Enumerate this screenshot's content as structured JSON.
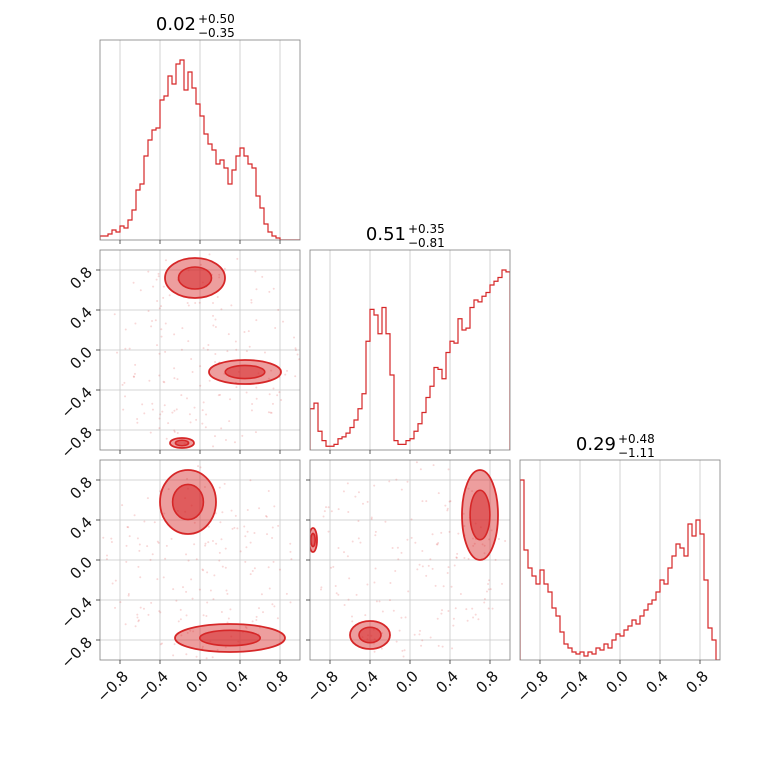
{
  "chart_data": {
    "type": "corner",
    "params": 3,
    "axis_range": [
      -1.0,
      1.0
    ],
    "ticks": [
      -0.8,
      -0.4,
      0.0,
      0.4,
      0.8
    ],
    "tick_labels": [
      "−0.8",
      "−0.4",
      "0.0",
      "0.4",
      "0.8"
    ],
    "grid": true,
    "color": "#d62728",
    "titles": [
      {
        "median": "0.02",
        "plus": "+0.50",
        "minus": "−0.35"
      },
      {
        "median": "0.51",
        "plus": "+0.35",
        "minus": "−0.81"
      },
      {
        "median": "0.29",
        "plus": "+0.48",
        "minus": "−1.11"
      }
    ],
    "histograms": [
      {
        "param": 0,
        "bin_edges_start": -1.0,
        "bin_width": 0.04,
        "counts": [
          0.02,
          0.02,
          0.03,
          0.05,
          0.04,
          0.07,
          0.06,
          0.1,
          0.15,
          0.25,
          0.28,
          0.42,
          0.5,
          0.55,
          0.56,
          0.7,
          0.72,
          0.82,
          0.78,
          0.88,
          0.9,
          0.75,
          0.84,
          0.76,
          0.68,
          0.62,
          0.53,
          0.48,
          0.45,
          0.38,
          0.4,
          0.36,
          0.28,
          0.35,
          0.42,
          0.46,
          0.42,
          0.38,
          0.36,
          0.22,
          0.16,
          0.08,
          0.04,
          0.02,
          0.01,
          0.0,
          0.0,
          0.0,
          0.0,
          0.0
        ]
      },
      {
        "param": 1,
        "bin_edges_start": -1.0,
        "bin_width": 0.04,
        "counts": [
          0.22,
          0.25,
          0.1,
          0.05,
          0.02,
          0.02,
          0.03,
          0.06,
          0.07,
          0.09,
          0.12,
          0.16,
          0.22,
          0.3,
          0.58,
          0.75,
          0.72,
          0.62,
          0.76,
          0.62,
          0.4,
          0.05,
          0.03,
          0.03,
          0.05,
          0.06,
          0.1,
          0.14,
          0.2,
          0.28,
          0.34,
          0.44,
          0.43,
          0.38,
          0.52,
          0.58,
          0.57,
          0.7,
          0.64,
          0.65,
          0.76,
          0.8,
          0.79,
          0.82,
          0.84,
          0.88,
          0.9,
          0.92,
          0.96,
          0.95
        ]
      },
      {
        "param": 2,
        "bin_edges_start": -1.0,
        "bin_width": 0.04,
        "counts": [
          0.9,
          0.55,
          0.46,
          0.42,
          0.38,
          0.45,
          0.38,
          0.34,
          0.26,
          0.22,
          0.14,
          0.08,
          0.06,
          0.04,
          0.03,
          0.04,
          0.02,
          0.04,
          0.03,
          0.06,
          0.05,
          0.08,
          0.06,
          0.1,
          0.13,
          0.12,
          0.15,
          0.17,
          0.2,
          0.18,
          0.22,
          0.25,
          0.28,
          0.3,
          0.34,
          0.4,
          0.38,
          0.46,
          0.52,
          0.58,
          0.56,
          0.52,
          0.68,
          0.62,
          0.7,
          0.63,
          0.4,
          0.16,
          0.1,
          0.0
        ]
      }
    ],
    "contour_panels": [
      {
        "x_param": 0,
        "y_param": 1,
        "blobs": [
          {
            "cx": -0.05,
            "cy": 0.72,
            "rx": 0.3,
            "ry": 0.2
          },
          {
            "cx": 0.45,
            "cy": -0.22,
            "rx": 0.36,
            "ry": 0.12
          },
          {
            "cx": -0.18,
            "cy": -0.93,
            "rx": 0.12,
            "ry": 0.05
          }
        ]
      },
      {
        "x_param": 0,
        "y_param": 2,
        "blobs": [
          {
            "cx": -0.12,
            "cy": 0.58,
            "rx": 0.28,
            "ry": 0.32
          },
          {
            "cx": 0.3,
            "cy": -0.78,
            "rx": 0.55,
            "ry": 0.14
          }
        ]
      },
      {
        "x_param": 1,
        "y_param": 2,
        "blobs": [
          {
            "cx": 0.7,
            "cy": 0.45,
            "rx": 0.18,
            "ry": 0.45
          },
          {
            "cx": -0.4,
            "cy": -0.75,
            "rx": 0.2,
            "ry": 0.14
          },
          {
            "cx": -0.97,
            "cy": 0.2,
            "rx": 0.04,
            "ry": 0.12
          }
        ]
      }
    ]
  }
}
